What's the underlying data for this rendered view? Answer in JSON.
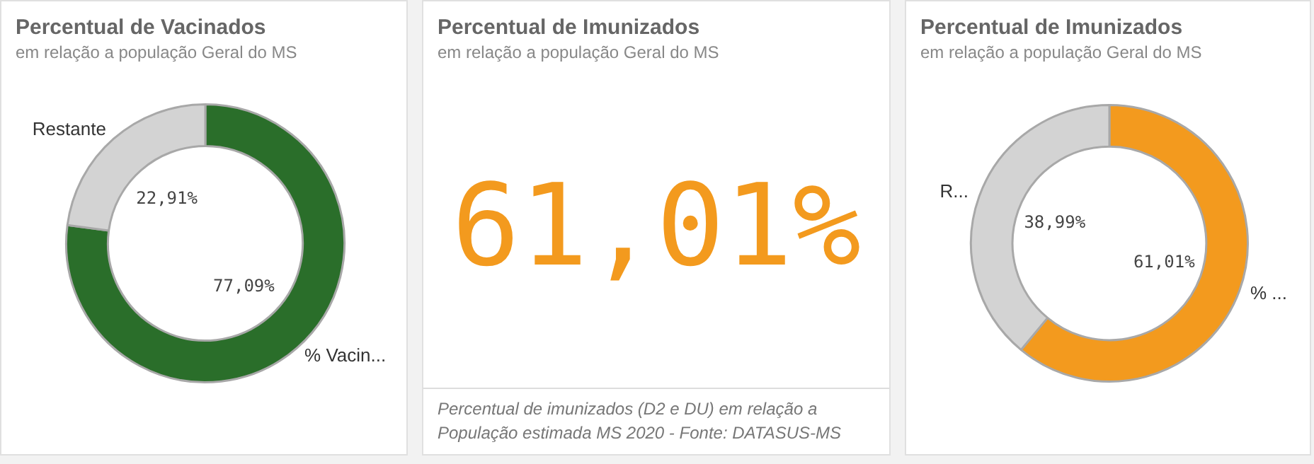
{
  "chart_data": [
    {
      "type": "donut",
      "title": "Percentual de Vacinados",
      "subtitle": "em relação a população Geral do MS",
      "categories": [
        "% Vacin...",
        "Restante"
      ],
      "values": [
        77.09,
        22.91
      ],
      "colors": [
        "#2a6e2a",
        "#d3d3d3"
      ],
      "value_labels": [
        "77,09%",
        "22,91%"
      ]
    },
    {
      "type": "other",
      "title": "Percentual de Imunizados",
      "subtitle": "em relação a população Geral do MS",
      "annotations": [
        "61,01%",
        "Percentual de imunizados (D2 e DU) em relação a População estimada MS 2020 - Fonte: DATASUS-MS"
      ]
    },
    {
      "type": "donut",
      "title": "Percentual de Imunizados",
      "subtitle": "em relação a população Geral do MS",
      "categories": [
        "% ...",
        "R..."
      ],
      "values": [
        61.01,
        38.99
      ],
      "colors": [
        "#f39a1e",
        "#d3d3d3"
      ],
      "value_labels": [
        "61,01%",
        "38,99%"
      ]
    }
  ]
}
